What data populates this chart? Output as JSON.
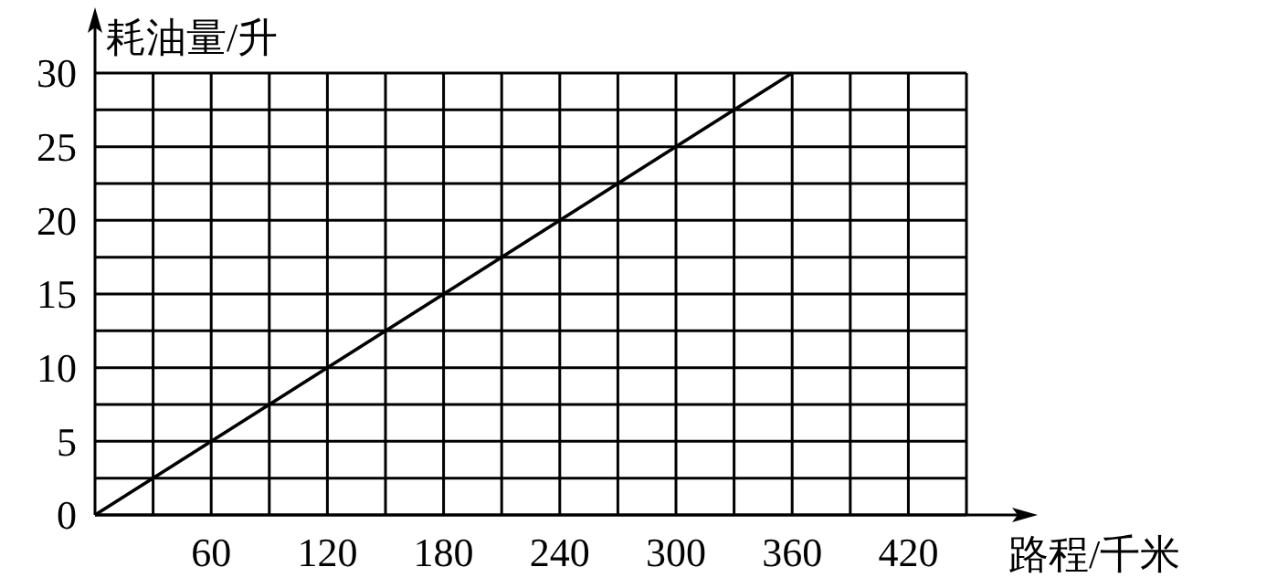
{
  "chart_data": {
    "type": "line",
    "xlabel": "路程/千米",
    "ylabel": "耗油量/升",
    "x": [
      0,
      360
    ],
    "series": [
      {
        "color": "#000000",
        "values": [
          0,
          30
        ]
      }
    ],
    "xlim": [
      0,
      450
    ],
    "xticks": [
      {
        "value": 30,
        "label": null
      },
      60,
      {
        "value": 90,
        "label": null
      },
      120,
      {
        "value": 150,
        "label": null
      },
      180,
      {
        "value": 210,
        "label": null
      },
      240,
      {
        "value": 270,
        "label": null
      },
      300,
      {
        "value": 330,
        "label": null
      },
      360,
      {
        "value": 390,
        "label": null
      },
      420,
      {
        "value": 450,
        "label": null
      }
    ],
    "ylim": [
      0,
      30
    ],
    "yticks": [
      0,
      {
        "value": 2.5,
        "label": null
      },
      5,
      {
        "value": 7.5,
        "label": null
      },
      10,
      {
        "value": 12.5,
        "label": null
      },
      15,
      {
        "value": 17.5,
        "label": null
      },
      20,
      {
        "value": 22.5,
        "label": null
      },
      25,
      {
        "value": 27.5,
        "label": null
      },
      30
    ],
    "grid": true,
    "marker": "none",
    "line_style": "solid"
  }
}
